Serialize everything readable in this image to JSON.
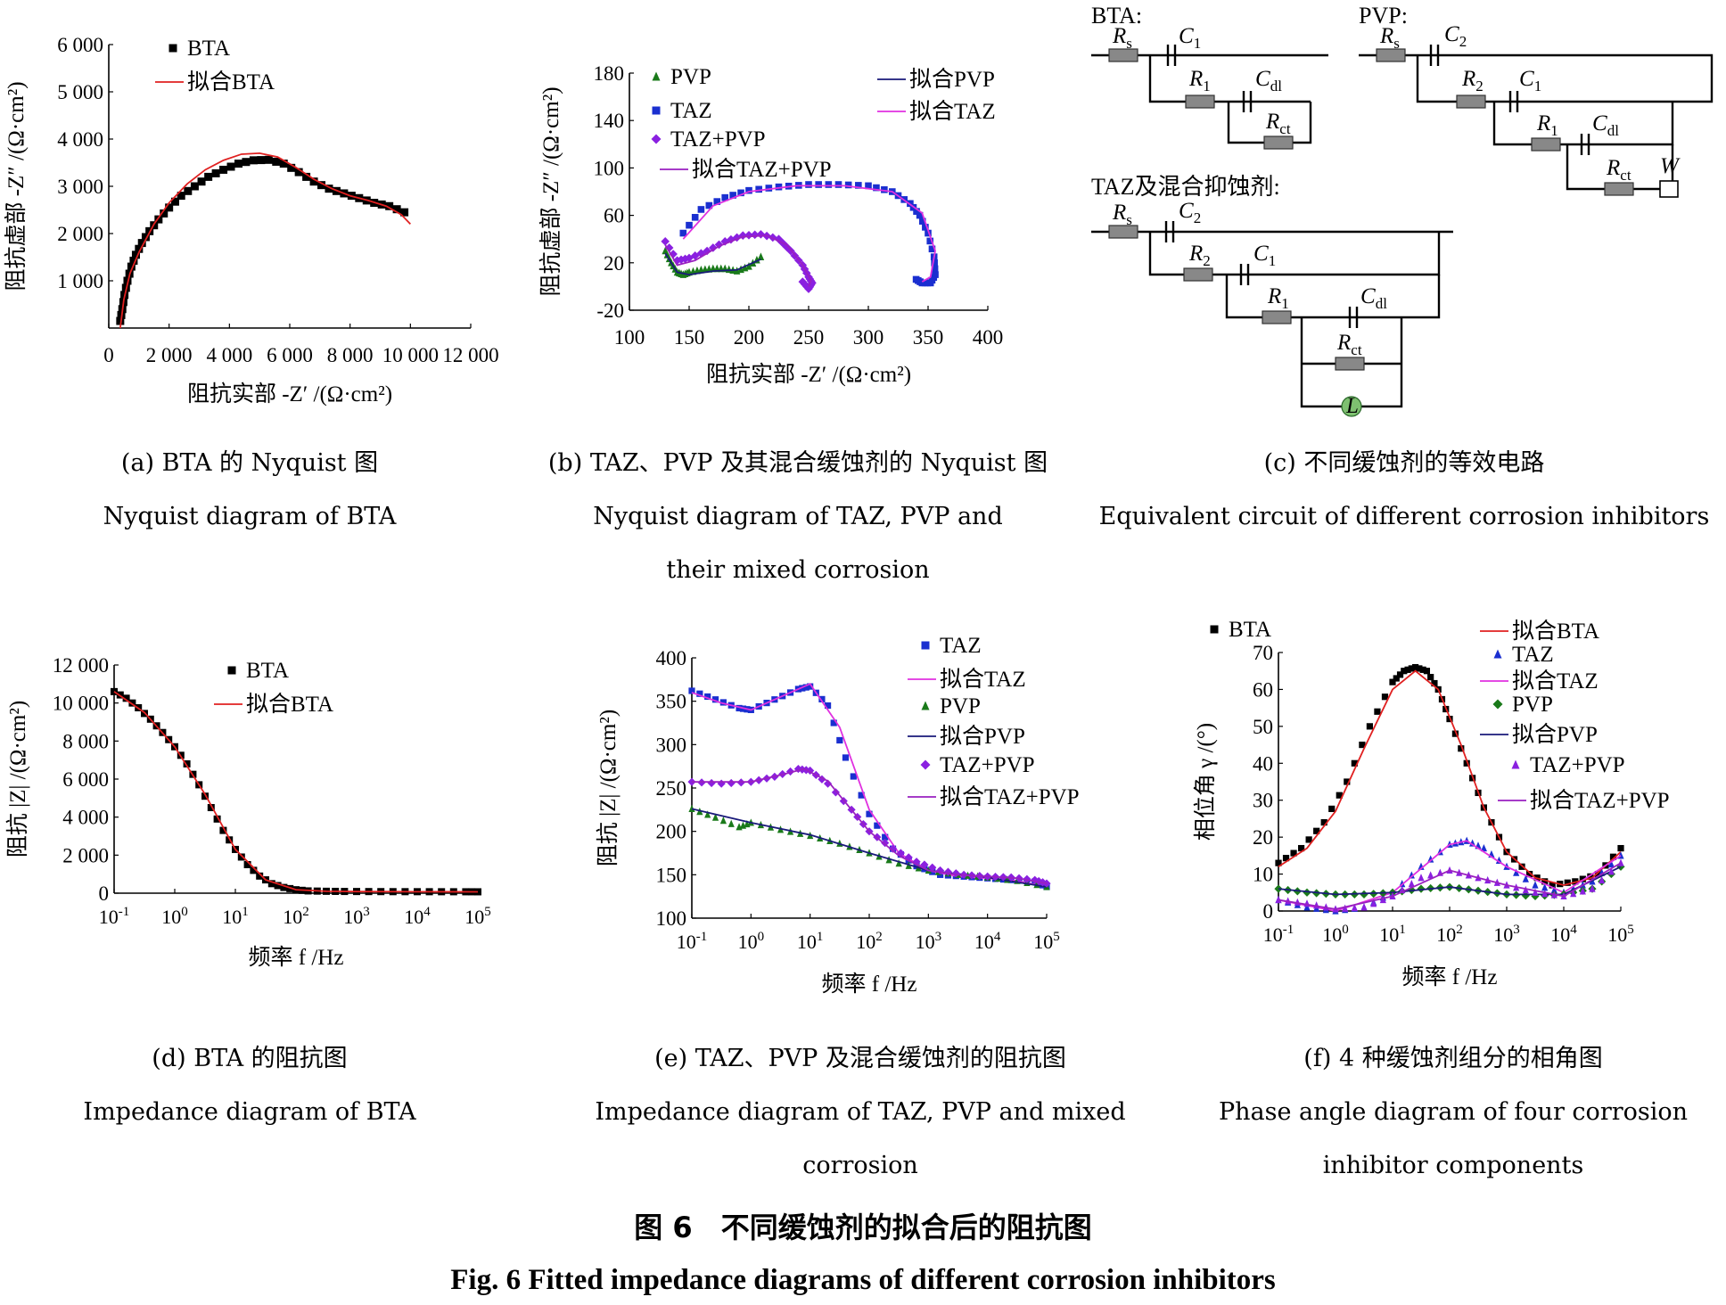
{
  "figure_title": "图 6　不同缓蚀剂的拟合后的阻抗图",
  "figure_title_en": "Fig. 6 Fitted impedance diagrams of different corrosion inhibitors",
  "captions": {
    "a": {
      "cn": "(a) BTA 的 Nyquist 图",
      "en": "Nyquist diagram of BTA"
    },
    "b": {
      "cn": "(b) TAZ、PVP 及其混合缓蚀剂的 Nyquist 图",
      "en1": "Nyquist diagram of TAZ, PVP and",
      "en2": "their mixed corrosion"
    },
    "c": {
      "cn": "(c) 不同缓蚀剂的等效电路",
      "en": "Equivalent circuit of different corrosion inhibitors"
    },
    "d": {
      "cn": "(d) BTA 的阻抗图",
      "en": "Impedance diagram of BTA"
    },
    "e": {
      "cn": "(e) TAZ、PVP 及混合缓蚀剂的阻抗图",
      "en1": "Impedance diagram of TAZ, PVP and mixed",
      "en2": "corrosion"
    },
    "f": {
      "cn": "(f) 4 种缓蚀剂组分的相角图",
      "en1": "Phase angle diagram of four corrosion",
      "en2": "inhibitor components"
    }
  },
  "circuits": {
    "bta": {
      "label": "BTA:",
      "elements": [
        "Rs",
        "C1",
        "R1",
        "Cdl",
        "Rct"
      ]
    },
    "pvp": {
      "label": "PVP:",
      "elements": [
        "Rs",
        "C2",
        "R2",
        "C1",
        "R1",
        "Cdl",
        "Rct",
        "W"
      ]
    },
    "taz": {
      "label": "TAZ及混合抑蚀剂:",
      "elements": [
        "Rs",
        "C2",
        "R2",
        "C1",
        "R1",
        "Cdl",
        "Rct",
        "L"
      ]
    }
  },
  "colors": {
    "bta": "#000000",
    "fit_bta": "#e02020",
    "taz": "#1a2fd0",
    "fit_taz": "#e030e0",
    "pvp": "#1a7a1a",
    "fit_pvp": "#1a1a7a",
    "mix": "#8a20e0",
    "fit_mix": "#9a20c0"
  },
  "chart_data": [
    {
      "id": "a",
      "type": "scatter",
      "xlabel": "阻抗实部 -Z′ /(Ω·cm²)",
      "ylabel": "阻抗虚部 -Z″ /(Ω·cm²)",
      "xlim": [
        0,
        12000
      ],
      "ylim": [
        0,
        6000
      ],
      "xticks": [
        "0",
        "2 000",
        "4 000",
        "6 000",
        "8 000",
        "10 000",
        "12 000"
      ],
      "yticks": [
        "1 000",
        "2 000",
        "3 000",
        "4 000",
        "5 000",
        "6 000"
      ],
      "legend": [
        "BTA",
        "拟合BTA"
      ],
      "series": [
        {
          "name": "BTA",
          "style": "square",
          "color": "#000000",
          "x": [
            380,
            450,
            520,
            620,
            750,
            900,
            1100,
            1350,
            1650,
            2000,
            2400,
            2850,
            3300,
            3800,
            4300,
            4800,
            5300,
            5800,
            6300,
            6800,
            7300,
            7800,
            8300,
            8800,
            9300,
            9800
          ],
          "y": [
            150,
            400,
            700,
            1000,
            1300,
            1550,
            1800,
            2050,
            2300,
            2550,
            2800,
            3000,
            3200,
            3350,
            3480,
            3550,
            3560,
            3480,
            3300,
            3100,
            2950,
            2850,
            2750,
            2650,
            2580,
            2450
          ]
        },
        {
          "name": "拟合BTA",
          "style": "line",
          "color": "#e02020",
          "x": [
            380,
            500,
            700,
            1000,
            1500,
            2000,
            2600,
            3200,
            3800,
            4400,
            5000,
            5600,
            6200,
            6800,
            7400,
            8000,
            8600,
            9200,
            9700,
            10000
          ],
          "y": [
            0,
            600,
            1150,
            1600,
            2200,
            2650,
            3050,
            3350,
            3550,
            3680,
            3700,
            3620,
            3400,
            3150,
            2950,
            2800,
            2700,
            2580,
            2400,
            2200
          ]
        }
      ]
    },
    {
      "id": "b",
      "type": "scatter",
      "xlabel": "阻抗实部 -Z′ /(Ω·cm²)",
      "ylabel": "阻抗虚部 -Z″ /(Ω·cm²)",
      "xlim": [
        100,
        400
      ],
      "ylim": [
        -20,
        180
      ],
      "xticks": [
        "100",
        "150",
        "200",
        "250",
        "300",
        "350",
        "400"
      ],
      "yticks": [
        "-20",
        "20",
        "60",
        "100",
        "140",
        "180"
      ],
      "legend": [
        "PVP",
        "TAZ",
        "TAZ+PVP",
        "拟合TAZ+PVP",
        "拟合PVP",
        "拟合TAZ"
      ],
      "series": [
        {
          "name": "PVP",
          "style": "triangle",
          "color": "#1a7a1a",
          "x": [
            130,
            135,
            140,
            145,
            150,
            160,
            170,
            180,
            190,
            200,
            210
          ],
          "y": [
            30,
            20,
            12,
            10,
            12,
            14,
            15,
            15,
            13,
            17,
            25
          ]
        },
        {
          "name": "TAZ",
          "style": "square",
          "color": "#1a2fd0",
          "x": [
            145,
            160,
            180,
            200,
            225,
            250,
            275,
            300,
            320,
            335,
            343,
            350,
            355,
            356,
            352,
            345,
            340
          ],
          "y": [
            45,
            65,
            75,
            81,
            84,
            86,
            86,
            85,
            80,
            70,
            60,
            45,
            25,
            10,
            3,
            3,
            6
          ]
        },
        {
          "name": "TAZ+PVP",
          "style": "diamond",
          "color": "#8a20e0",
          "x": [
            130,
            140,
            150,
            165,
            180,
            195,
            210,
            225,
            235,
            245,
            250,
            253,
            250,
            245
          ],
          "y": [
            38,
            22,
            24,
            30,
            38,
            43,
            44,
            40,
            30,
            18,
            8,
            3,
            -2,
            4
          ]
        },
        {
          "name": "拟合TAZ+PVP",
          "style": "line",
          "color": "#9a20c0",
          "x": [
            130,
            140,
            155,
            175,
            195,
            215,
            232,
            245,
            252,
            250
          ],
          "y": [
            35,
            18,
            22,
            34,
            42,
            43,
            35,
            18,
            5,
            0
          ]
        },
        {
          "name": "拟合PVP",
          "style": "line",
          "color": "#1a1a7a",
          "x": [
            130,
            140,
            150,
            170,
            190,
            210
          ],
          "y": [
            28,
            12,
            10,
            13,
            14,
            23
          ]
        },
        {
          "name": "拟合TAZ",
          "style": "line",
          "color": "#e030e0",
          "x": [
            145,
            170,
            200,
            240,
            280,
            320,
            345,
            356,
            352,
            345
          ],
          "y": [
            40,
            68,
            80,
            85,
            85,
            80,
            62,
            30,
            8,
            4
          ]
        }
      ]
    },
    {
      "id": "d",
      "type": "line",
      "xlabel": "频率 f /Hz",
      "ylabel": "阻抗 |Z| /(Ω·cm²)",
      "xlog": true,
      "xlim": [
        -1,
        5
      ],
      "ylim": [
        0,
        12000
      ],
      "xticks": [
        "10-1",
        "100",
        "101",
        "102",
        "103",
        "104",
        "105"
      ],
      "yticks": [
        "0",
        "2 000",
        "4 000",
        "6 000",
        "8 000",
        "10 000",
        "12 000"
      ],
      "legend": [
        "BTA",
        "拟合BTA"
      ],
      "series": [
        {
          "name": "BTA",
          "style": "square",
          "color": "#000000",
          "x": [
            -1,
            -0.8,
            -0.6,
            -0.4,
            -0.2,
            0,
            0.2,
            0.4,
            0.6,
            0.8,
            1,
            1.2,
            1.4,
            1.6,
            1.8,
            2,
            2.2,
            2.5,
            2.8,
            3.2,
            3.6,
            4,
            4.4,
            4.8,
            5
          ],
          "y": [
            10600,
            10250,
            9750,
            9150,
            8450,
            7700,
            6800,
            5700,
            4500,
            3300,
            2300,
            1500,
            900,
            500,
            300,
            180,
            120,
            100,
            90,
            85,
            80,
            78,
            76,
            74,
            72
          ]
        },
        {
          "name": "拟合BTA",
          "style": "line",
          "color": "#e02020",
          "x": [
            -1,
            -0.5,
            0,
            0.5,
            1,
            1.5,
            2,
            2.5,
            3,
            4,
            5
          ],
          "y": [
            10600,
            9500,
            7700,
            5200,
            2300,
            700,
            180,
            100,
            85,
            76,
            72
          ]
        }
      ]
    },
    {
      "id": "e",
      "type": "line",
      "xlabel": "频率 f /Hz",
      "ylabel": "阻抗 |Z| /(Ω·cm²)",
      "xlog": true,
      "xlim": [
        -1,
        5
      ],
      "ylim": [
        100,
        400
      ],
      "xticks": [
        "10-1",
        "100",
        "101",
        "102",
        "103",
        "104",
        "105"
      ],
      "yticks": [
        "100",
        "150",
        "200",
        "250",
        "300",
        "350",
        "400"
      ],
      "legend": [
        "TAZ",
        "拟合TAZ",
        "PVP",
        "拟合PVP",
        "TAZ+PVP",
        "拟合TAZ+PVP"
      ],
      "series": [
        {
          "name": "TAZ",
          "style": "square",
          "color": "#1a2fd0",
          "x": [
            -1,
            -0.6,
            -0.2,
            0,
            0.4,
            0.8,
            1,
            1.3,
            1.6,
            2,
            2.4,
            2.8,
            3.2,
            3.6,
            4,
            4.4,
            4.8,
            5
          ],
          "y": [
            362,
            352,
            342,
            340,
            352,
            364,
            367,
            345,
            285,
            220,
            180,
            160,
            150,
            148,
            146,
            144,
            142,
            136
          ]
        },
        {
          "name": "拟合TAZ",
          "style": "line",
          "color": "#e030e0",
          "x": [
            -1,
            -0.5,
            0,
            0.5,
            1,
            1.5,
            2,
            2.5,
            3,
            3.5,
            4,
            4.5,
            5
          ],
          "y": [
            360,
            348,
            340,
            355,
            370,
            320,
            225,
            175,
            155,
            148,
            146,
            143,
            136
          ]
        },
        {
          "name": "PVP",
          "style": "triangle",
          "color": "#1a7a1a",
          "x": [
            -1,
            -0.6,
            -0.2,
            0,
            0.5,
            1,
            1.5,
            2,
            2.5,
            3,
            3.5,
            4,
            4.5,
            5
          ],
          "y": [
            226,
            216,
            205,
            210,
            202,
            195,
            186,
            175,
            163,
            155,
            150,
            147,
            143,
            136
          ]
        },
        {
          "name": "拟合PVP",
          "style": "line",
          "color": "#1a1a7a",
          "x": [
            -1,
            0,
            1,
            2,
            3,
            4,
            5
          ],
          "y": [
            226,
            210,
            196,
            175,
            155,
            147,
            136
          ]
        },
        {
          "name": "TAZ+PVP",
          "style": "diamond",
          "color": "#8a20e0",
          "x": [
            -1,
            -0.5,
            0,
            0.4,
            0.8,
            1,
            1.3,
            1.7,
            2,
            2.4,
            2.8,
            3.2,
            3.6,
            4,
            4.4,
            4.8,
            5
          ],
          "y": [
            257,
            255,
            257,
            263,
            272,
            270,
            255,
            225,
            200,
            180,
            165,
            155,
            150,
            148,
            147,
            144,
            140
          ]
        },
        {
          "name": "拟合TAZ+PVP",
          "style": "line",
          "color": "#9a20c0",
          "x": [
            -1,
            0,
            0.5,
            0.9,
            1.3,
            2,
            2.5,
            3,
            3.5,
            4,
            4.5,
            5
          ],
          "y": [
            257,
            257,
            265,
            272,
            258,
            200,
            172,
            155,
            150,
            148,
            146,
            140
          ]
        }
      ]
    },
    {
      "id": "f",
      "type": "line",
      "xlabel": "频率 f /Hz",
      "ylabel": "相位角 γ /(°)",
      "xlog": true,
      "xlim": [
        -1,
        5
      ],
      "ylim": [
        0,
        70
      ],
      "xticks": [
        "10-1",
        "100",
        "101",
        "102",
        "103",
        "104",
        "105"
      ],
      "yticks": [
        "0",
        "10",
        "20",
        "30",
        "40",
        "50",
        "60",
        "70"
      ],
      "legend": [
        "BTA",
        "拟合BTA",
        "TAZ",
        "拟合TAZ",
        "PVP",
        "拟合PVP",
        "TAZ+PVP",
        "拟合TAZ+PVP"
      ],
      "series": [
        {
          "name": "BTA",
          "style": "square",
          "color": "#000000",
          "x": [
            -1,
            -0.6,
            -0.2,
            0.2,
            0.6,
            1,
            1.2,
            1.4,
            1.6,
            1.8,
            2,
            2.3,
            2.6,
            3,
            3.4,
            3.8,
            4.2,
            4.6,
            5
          ],
          "y": [
            13,
            17,
            24,
            35,
            50,
            62,
            65,
            66,
            65,
            60,
            52,
            40,
            28,
            16,
            10,
            7,
            8,
            10,
            17
          ]
        },
        {
          "name": "拟合BTA",
          "style": "line",
          "color": "#e02020",
          "x": [
            -1,
            -0.5,
            0,
            0.5,
            1,
            1.4,
            1.8,
            2.2,
            2.6,
            3,
            3.5,
            4,
            4.5,
            5
          ],
          "y": [
            12,
            17,
            27,
            44,
            60,
            65,
            60,
            45,
            28,
            16,
            9,
            7,
            9,
            16
          ]
        },
        {
          "name": "TAZ",
          "style": "triangle",
          "color": "#1a2fd0",
          "x": [
            -1,
            -0.5,
            0,
            0.5,
            1,
            1.5,
            2,
            2.3,
            2.6,
            3,
            3.5,
            4,
            4.5,
            5
          ],
          "y": [
            3,
            1,
            0,
            1,
            5,
            12,
            18,
            19,
            17,
            12,
            7,
            5,
            8,
            15
          ]
        },
        {
          "name": "拟合TAZ",
          "style": "line",
          "color": "#e030e0",
          "x": [
            -1,
            0,
            1,
            2,
            2.3,
            3,
            4,
            5
          ],
          "y": [
            3,
            0,
            5,
            18,
            19,
            12,
            5,
            15
          ]
        },
        {
          "name": "PVP",
          "style": "diamond",
          "color": "#1a7a1a",
          "x": [
            -1,
            -0.5,
            0,
            0.5,
            1,
            1.5,
            2,
            2.5,
            3,
            3.5,
            4,
            4.5,
            5
          ],
          "y": [
            6,
            5,
            4.5,
            4.5,
            5,
            6,
            6.5,
            5.5,
            4.5,
            4,
            4.5,
            6,
            12
          ]
        },
        {
          "name": "拟合PVP",
          "style": "line",
          "color": "#1a1a7a",
          "x": [
            -1,
            0,
            1,
            2,
            3,
            4,
            5
          ],
          "y": [
            6,
            4.5,
            5,
            6.5,
            4.5,
            4.5,
            12
          ]
        },
        {
          "name": "TAZ+PVP",
          "style": "triangle",
          "color": "#8a20e0",
          "x": [
            -1,
            -0.5,
            0,
            0.5,
            1,
            1.5,
            2,
            2.5,
            3,
            3.5,
            4,
            4.5,
            5
          ],
          "y": [
            3,
            2,
            0.5,
            1,
            4,
            9,
            11,
            9,
            7,
            5,
            4,
            6,
            13
          ]
        },
        {
          "name": "拟合TAZ+PVP",
          "style": "line",
          "color": "#9a20c0",
          "x": [
            -1,
            0,
            1,
            2,
            3,
            4,
            5
          ],
          "y": [
            3,
            0.5,
            4,
            11,
            7,
            4,
            13
          ]
        }
      ]
    }
  ]
}
